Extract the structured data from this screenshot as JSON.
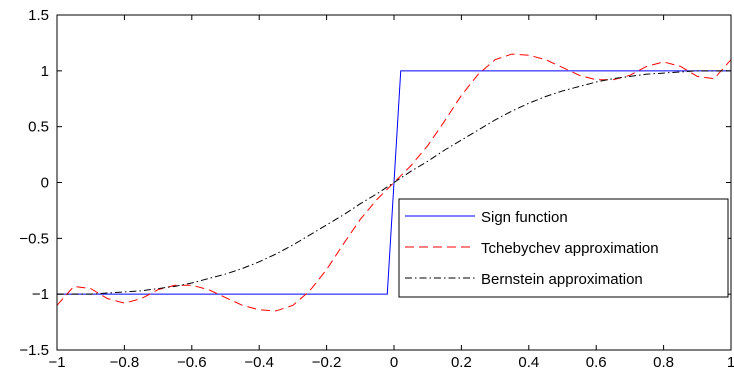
{
  "chart_data": {
    "type": "line",
    "title": "",
    "xlabel": "",
    "ylabel": "",
    "xlim": [
      -1,
      1
    ],
    "ylim": [
      -1.5,
      1.5
    ],
    "xticks": [
      -1,
      -0.8,
      -0.6,
      -0.4,
      -0.2,
      0,
      0.2,
      0.4,
      0.6,
      0.8,
      1
    ],
    "xtick_labels": [
      "−1",
      "−0.8",
      "−0.6",
      "−0.4",
      "−0.2",
      "0",
      "0.2",
      "0.4",
      "0.6",
      "0.8",
      "1"
    ],
    "yticks": [
      -1.5,
      -1,
      -0.5,
      0,
      0.5,
      1,
      1.5
    ],
    "ytick_labels": [
      "−1.5",
      "−1",
      "−0.5",
      "0",
      "0.5",
      "1",
      "1.5"
    ],
    "grid": false,
    "legend_position": "bottom-right",
    "series": [
      {
        "name": "Sign function",
        "color": "#0000ff",
        "style": "solid",
        "x": [
          -1,
          -0.02,
          0.02,
          1
        ],
        "y": [
          -1,
          -1,
          1,
          1
        ]
      },
      {
        "name": "Tchebychev approximation",
        "color": "#ff0000",
        "style": "dashed",
        "x": [
          -1,
          -0.95,
          -0.9,
          -0.85,
          -0.8,
          -0.75,
          -0.7,
          -0.65,
          -0.6,
          -0.55,
          -0.5,
          -0.45,
          -0.4,
          -0.35,
          -0.3,
          -0.25,
          -0.2,
          -0.15,
          -0.1,
          -0.05,
          0,
          0.05,
          0.1,
          0.15,
          0.2,
          0.25,
          0.3,
          0.35,
          0.4,
          0.45,
          0.5,
          0.55,
          0.6,
          0.65,
          0.7,
          0.75,
          0.8,
          0.85,
          0.9,
          0.95,
          1
        ],
        "y": [
          -1.1,
          -0.93,
          -0.95,
          -1.04,
          -1.08,
          -1.04,
          -0.96,
          -0.92,
          -0.92,
          -0.96,
          -1.03,
          -1.1,
          -1.14,
          -1.15,
          -1.1,
          -0.97,
          -0.78,
          -0.55,
          -0.33,
          -0.15,
          0,
          0.15,
          0.33,
          0.55,
          0.78,
          0.97,
          1.1,
          1.15,
          1.14,
          1.1,
          1.03,
          0.96,
          0.92,
          0.92,
          0.96,
          1.04,
          1.08,
          1.04,
          0.95,
          0.93,
          1.1
        ]
      },
      {
        "name": "Bernstein approximation",
        "color": "#000000",
        "style": "dashdot",
        "x": [
          -1,
          -0.95,
          -0.9,
          -0.85,
          -0.8,
          -0.75,
          -0.7,
          -0.65,
          -0.6,
          -0.55,
          -0.5,
          -0.45,
          -0.4,
          -0.35,
          -0.3,
          -0.25,
          -0.2,
          -0.15,
          -0.1,
          -0.05,
          0,
          0.05,
          0.1,
          0.15,
          0.2,
          0.25,
          0.3,
          0.35,
          0.4,
          0.45,
          0.5,
          0.55,
          0.6,
          0.65,
          0.7,
          0.75,
          0.8,
          0.85,
          0.9,
          0.95,
          1
        ],
        "y": [
          -1,
          -1,
          -1,
          -0.99,
          -0.98,
          -0.97,
          -0.95,
          -0.93,
          -0.9,
          -0.86,
          -0.82,
          -0.77,
          -0.71,
          -0.64,
          -0.56,
          -0.47,
          -0.38,
          -0.29,
          -0.19,
          -0.1,
          0,
          0.1,
          0.19,
          0.29,
          0.38,
          0.47,
          0.56,
          0.64,
          0.71,
          0.77,
          0.82,
          0.86,
          0.9,
          0.93,
          0.95,
          0.97,
          0.98,
          0.99,
          1,
          1,
          1
        ]
      }
    ]
  }
}
